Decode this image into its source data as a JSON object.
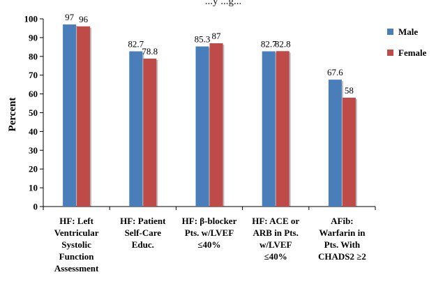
{
  "chart_data": {
    "type": "bar",
    "title_fragment": "...y ...g...",
    "xlabel": "",
    "ylabel": "Percent",
    "ylim": [
      0,
      100
    ],
    "yticks": [
      0,
      10,
      20,
      30,
      40,
      50,
      60,
      70,
      80,
      90,
      100
    ],
    "grid": false,
    "legend_position": "right",
    "categories": [
      [
        "HF: Left",
        "Ventricular",
        "Systolic",
        "Function",
        "Assessment"
      ],
      [
        "HF: Patient",
        "Self-Care",
        "Educ."
      ],
      [
        "HF: β-blocker",
        "Pts. w/LVEF",
        "≤40%"
      ],
      [
        "HF: ACE or",
        "ARB in Pts.",
        "w/LVEF",
        "≤40%"
      ],
      [
        "AFib:",
        "Warfarin in",
        "Pts. With",
        "CHADS2 ≥2"
      ]
    ],
    "series": [
      {
        "name": "Male",
        "color": "#4a7ebb",
        "values": [
          97,
          82.7,
          85.3,
          82.7,
          67.6
        ],
        "labels": [
          "97",
          "82.7",
          "85.3",
          "82.7",
          "67.6"
        ]
      },
      {
        "name": "Female",
        "color": "#be4b48",
        "values": [
          96,
          78.8,
          87,
          82.8,
          58
        ],
        "labels": [
          "96",
          "78.8",
          "87",
          "82.8",
          "58"
        ]
      }
    ]
  }
}
